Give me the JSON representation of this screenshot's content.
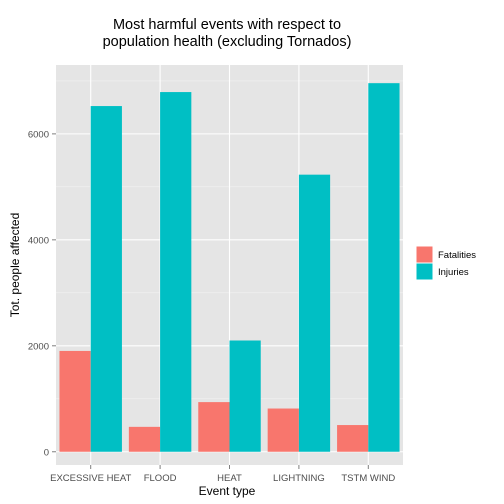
{
  "chart_data": {
    "type": "bar",
    "title_lines": [
      "Most harmful events with respect to",
      "population health (excluding Tornados)"
    ],
    "xlabel": "Event type",
    "ylabel": "Tot. people affected",
    "categories": [
      "EXCESSIVE HEAT",
      "FLOOD",
      "HEAT",
      "LIGHTNING",
      "TSTM WIND"
    ],
    "series": [
      {
        "name": "Fatalities",
        "color": "#F8766D",
        "values": [
          1903,
          470,
          937,
          816,
          504
        ]
      },
      {
        "name": "Injuries",
        "color": "#00BFC4",
        "values": [
          6525,
          6789,
          2100,
          5230,
          6957
        ]
      }
    ],
    "ylim": [
      -250,
      7300
    ],
    "yticks": [
      0,
      2000,
      4000,
      6000
    ],
    "grid": true,
    "legend_position": "right",
    "panel_background": "#E5E5E5"
  }
}
